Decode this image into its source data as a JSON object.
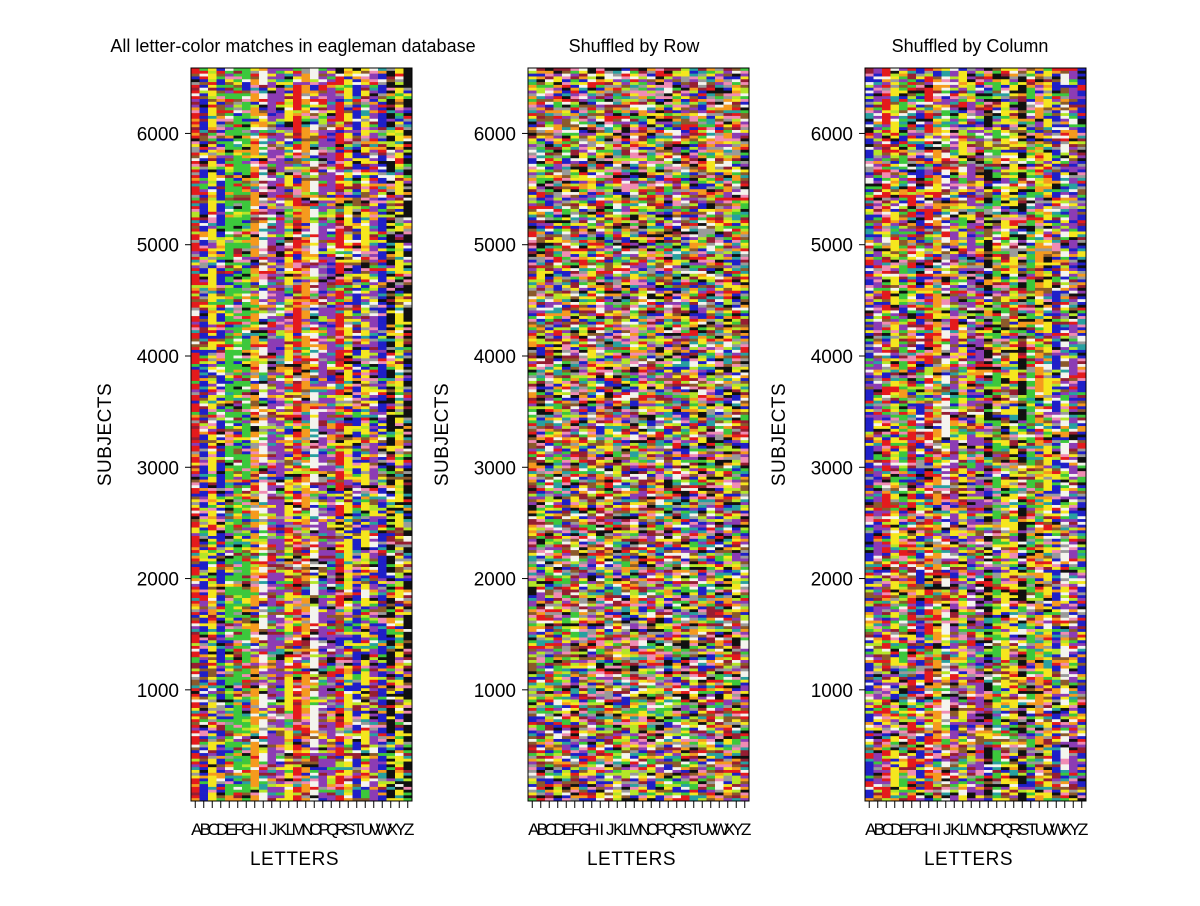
{
  "chart_data": [
    {
      "type": "heatmap",
      "title": "All letter-color matches in eagleman database",
      "xlabel": "LETTERS",
      "ylabel": "SUBJECTS",
      "x_categories": [
        "A",
        "B",
        "C",
        "D",
        "E",
        "F",
        "G",
        "H",
        "I",
        "J",
        "K",
        "L",
        "M",
        "N",
        "O",
        "P",
        "Q",
        "R",
        "S",
        "T",
        "U",
        "V",
        "W",
        "X",
        "Y",
        "Z"
      ],
      "ylim": [
        1,
        6588
      ],
      "yticks": [
        1000,
        2000,
        3000,
        4000,
        5000,
        6000
      ],
      "pattern": "original",
      "column_bias": {
        "A": "red",
        "B": "blue",
        "C": "yellow",
        "D": "blue",
        "E": "green",
        "F": "green",
        "G": "green",
        "H": "orange",
        "I": "white",
        "J": "purple",
        "K": "purple",
        "L": "yellow",
        "M": "red",
        "N": "orange",
        "O": "white",
        "P": "purple",
        "Q": "purple",
        "R": "red",
        "S": "yellow",
        "T": "blue",
        "U": "yellow",
        "V": "purple",
        "W": "blue",
        "X": "black",
        "Y": "yellow",
        "Z": "black"
      }
    },
    {
      "type": "heatmap",
      "title": "Shuffled by Row",
      "xlabel": "LETTERS",
      "ylabel": "SUBJECTS",
      "x_categories": [
        "A",
        "B",
        "C",
        "D",
        "E",
        "F",
        "G",
        "H",
        "I",
        "J",
        "K",
        "L",
        "M",
        "N",
        "O",
        "P",
        "Q",
        "R",
        "S",
        "T",
        "U",
        "V",
        "W",
        "X",
        "Y",
        "Z"
      ],
      "ylim": [
        1,
        6588
      ],
      "yticks": [
        1000,
        2000,
        3000,
        4000,
        5000,
        6000
      ],
      "pattern": "shuffled-by-row"
    },
    {
      "type": "heatmap",
      "title": "Shuffled by Column",
      "xlabel": "LETTERS",
      "ylabel": "SUBJECTS",
      "x_categories": [
        "A",
        "B",
        "C",
        "D",
        "E",
        "F",
        "G",
        "H",
        "I",
        "J",
        "K",
        "L",
        "M",
        "N",
        "O",
        "P",
        "Q",
        "R",
        "S",
        "T",
        "U",
        "V",
        "W",
        "X",
        "Y",
        "Z"
      ],
      "ylim": [
        1,
        6588
      ],
      "yticks": [
        1000,
        2000,
        3000,
        4000,
        5000,
        6000
      ],
      "pattern": "shuffled-by-column"
    }
  ],
  "palette": {
    "red": "#e41a1c",
    "blue": "#1f1fc8",
    "yellow": "#f5e61e",
    "green": "#3cc83c",
    "orange": "#f59a1e",
    "purple": "#8c3cb4",
    "white": "#f4f4ee",
    "black": "#111111",
    "brown": "#8b5a2b",
    "pink": "#f08cb4",
    "gray": "#9a9a9a",
    "teal": "#28a0a0",
    "lime": "#b4e628",
    "maroon": "#961e32"
  }
}
